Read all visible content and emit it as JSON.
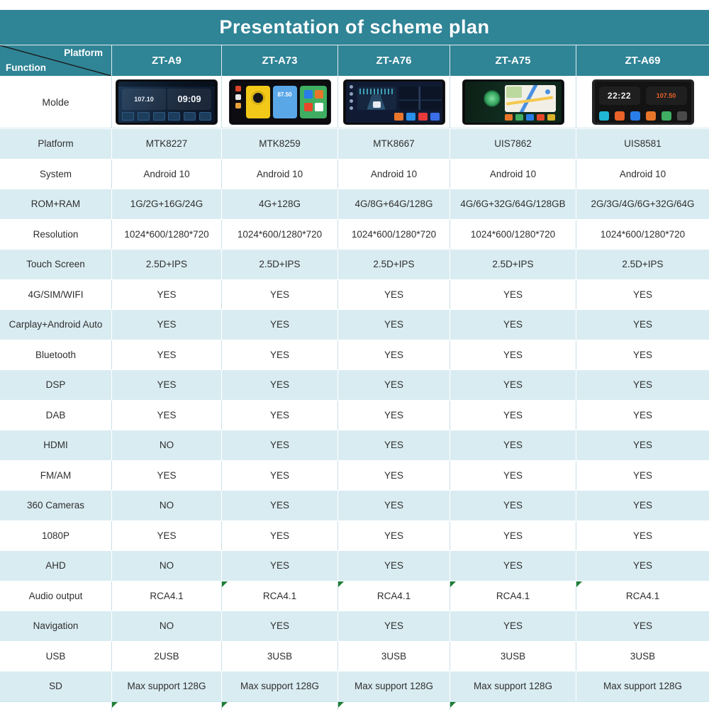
{
  "title": "Presentation of scheme plan",
  "corner": {
    "top_label": "Platform",
    "bottom_label": "Function"
  },
  "columns": [
    "ZT-A9",
    "ZT-A73",
    "ZT-A76",
    "ZT-A75",
    "ZT-A69"
  ],
  "model_row_label": "Molde",
  "products": [
    {
      "model": "ZT-A9",
      "freq": "107.10",
      "clock": "09:09"
    },
    {
      "model": "ZT-A73",
      "freq": "87.50"
    },
    {
      "model": "ZT-A76"
    },
    {
      "model": "ZT-A75"
    },
    {
      "model": "ZT-A69",
      "clock": "22:22",
      "freq": "107.50"
    }
  ],
  "rows": [
    {
      "label": "Platform",
      "values": [
        "MTK8227",
        "MTK8259",
        "MTK8667",
        "UIS7862",
        "UIS8581"
      ]
    },
    {
      "label": "System",
      "values": [
        "Android 10",
        "Android 10",
        "Android 10",
        "Android 10",
        "Android 10"
      ]
    },
    {
      "label": "ROM+RAM",
      "values": [
        "1G/2G+16G/24G",
        "4G+128G",
        "4G/8G+64G/128G",
        "4G/6G+32G/64G/128GB",
        "2G/3G/4G/6G+32G/64G"
      ]
    },
    {
      "label": "Resolution",
      "values": [
        "1024*600/1280*720",
        "1024*600/1280*720",
        "1024*600/1280*720",
        "1024*600/1280*720",
        "1024*600/1280*720"
      ]
    },
    {
      "label": "Touch Screen",
      "values": [
        "2.5D+IPS",
        "2.5D+IPS",
        "2.5D+IPS",
        "2.5D+IPS",
        "2.5D+IPS"
      ]
    },
    {
      "label": "4G/SIM/WIFI",
      "values": [
        "YES",
        "YES",
        "YES",
        "YES",
        "YES"
      ]
    },
    {
      "label": "Carplay+Android Auto",
      "values": [
        "YES",
        "YES",
        "YES",
        "YES",
        "YES"
      ]
    },
    {
      "label": "Bluetooth",
      "values": [
        "YES",
        "YES",
        "YES",
        "YES",
        "YES"
      ]
    },
    {
      "label": "DSP",
      "values": [
        "YES",
        "YES",
        "YES",
        "YES",
        "YES"
      ]
    },
    {
      "label": "DAB",
      "values": [
        "YES",
        "YES",
        "YES",
        "YES",
        "YES"
      ]
    },
    {
      "label": "HDMI",
      "values": [
        "NO",
        "YES",
        "YES",
        "YES",
        "YES"
      ]
    },
    {
      "label": "FM/AM",
      "values": [
        "YES",
        "YES",
        "YES",
        "YES",
        "YES"
      ]
    },
    {
      "label": "360 Cameras",
      "values": [
        "NO",
        "YES",
        "YES",
        "YES",
        "YES"
      ]
    },
    {
      "label": "1080P",
      "values": [
        "YES",
        "YES",
        "YES",
        "YES",
        "YES"
      ]
    },
    {
      "label": "AHD",
      "values": [
        "NO",
        "YES",
        "YES",
        "YES",
        "YES"
      ]
    },
    {
      "label": "Audio output",
      "values": [
        "RCA4.1",
        "RCA4.1",
        "RCA4.1",
        "RCA4.1",
        "RCA4.1"
      ],
      "marks": [
        false,
        true,
        true,
        true,
        true
      ]
    },
    {
      "label": "Navigation",
      "values": [
        "NO",
        "YES",
        "YES",
        "YES",
        "YES"
      ]
    },
    {
      "label": "USB",
      "values": [
        "2USB",
        "3USB",
        "3USB",
        "3USB",
        "3USB"
      ]
    },
    {
      "label": "SD",
      "values": [
        "Max support 128G",
        "Max support 128G",
        "Max support 128G",
        "Max support 128G",
        "Max support 128G"
      ]
    }
  ],
  "partial_row_marks": [
    false,
    true,
    true,
    true,
    true
  ],
  "colors": {
    "header_teal": "#2f8496",
    "row_light_blue": "#d9ecf2",
    "marker_green": "#1e7e34",
    "text": "#2f2f2f"
  }
}
